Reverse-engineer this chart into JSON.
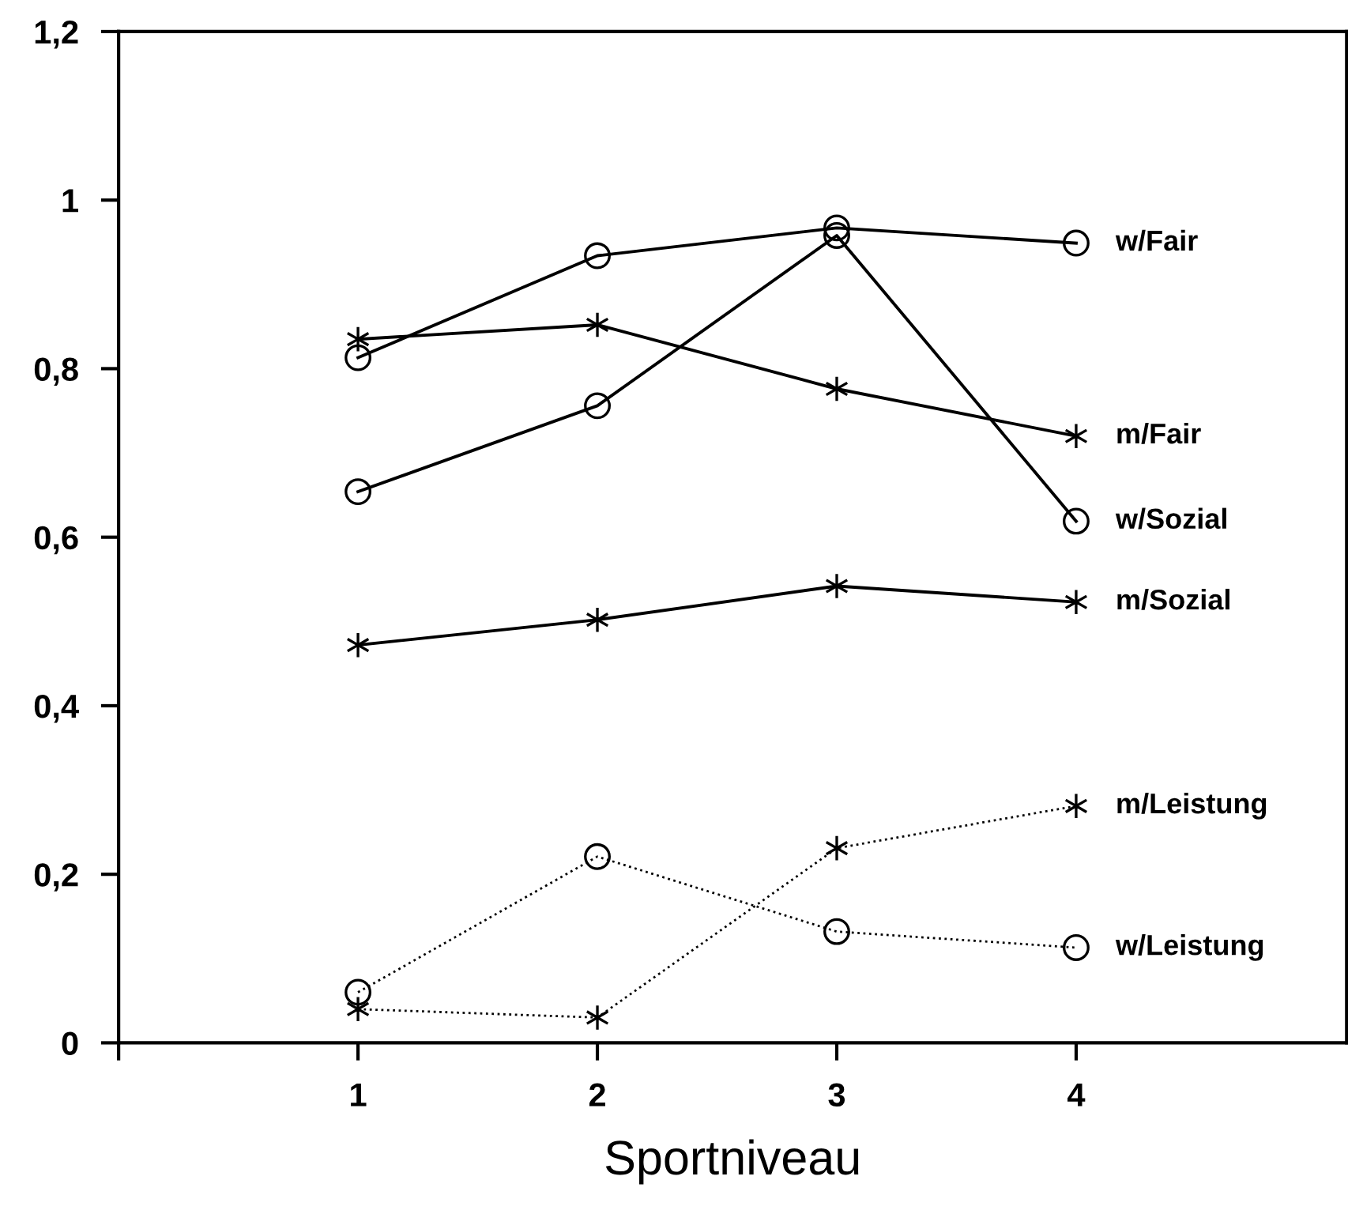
{
  "chart_data": {
    "type": "line",
    "xlabel": "Sportniveau",
    "x": [
      1,
      2,
      3,
      4
    ],
    "series": [
      {
        "name": "w/Fair",
        "color": "#000000",
        "marker": "circle",
        "line_style": "solid",
        "values": [
          0.813,
          0.934,
          0.967,
          0.949
        ]
      },
      {
        "name": "m/Fair",
        "color": "#000000",
        "marker": "cross",
        "line_style": "solid",
        "values": [
          0.835,
          0.852,
          0.776,
          0.72
        ]
      },
      {
        "name": "w/Sozial",
        "color": "#000000",
        "marker": "circle",
        "line_style": "solid",
        "values": [
          0.654,
          0.756,
          0.958,
          0.619
        ]
      },
      {
        "name": "m/Sozial",
        "color": "#000000",
        "marker": "cross",
        "line_style": "solid",
        "values": [
          0.472,
          0.502,
          0.542,
          0.523
        ]
      },
      {
        "name": "m/Leistung",
        "color": "#000000",
        "marker": "cross",
        "line_style": "dotted",
        "values": [
          0.04,
          0.03,
          0.231,
          0.281
        ]
      },
      {
        "name": "w/Leistung",
        "color": "#000000",
        "marker": "circle",
        "line_style": "dotted",
        "values": [
          0.06,
          0.221,
          0.132,
          0.113
        ]
      }
    ],
    "xlim": [
      0,
      5.13
    ],
    "ylim": [
      0,
      1.2
    ],
    "xticks": [
      {
        "value": 0,
        "label": null
      },
      1,
      2,
      3,
      4
    ],
    "yticks": [
      0,
      {
        "value": 0.2,
        "label": "0,2"
      },
      {
        "value": 0.4,
        "label": "0,4"
      },
      {
        "value": 0.6,
        "label": "0,6"
      },
      {
        "value": 0.8,
        "label": "0,8"
      },
      1,
      {
        "value": 1.2,
        "label": "1,2"
      }
    ],
    "grid": false,
    "legend": false
  }
}
